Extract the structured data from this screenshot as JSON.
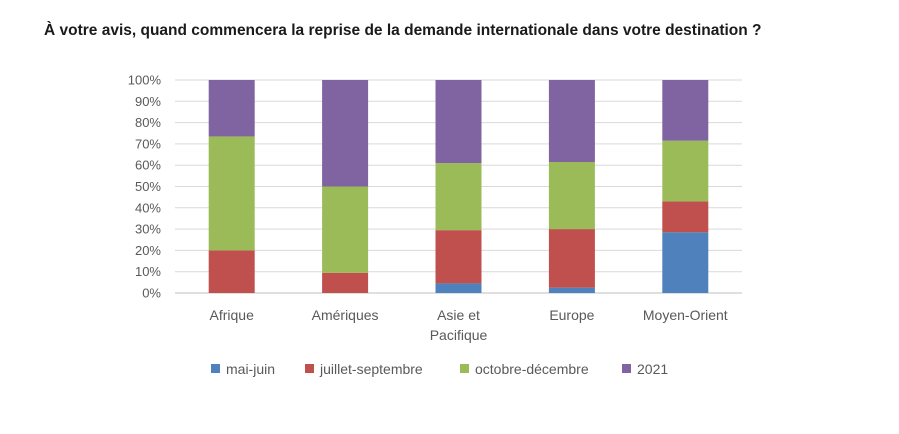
{
  "title": "À votre avis, quand commencera la reprise de la demande internationale dans votre destination ?",
  "colors": {
    "mai-juin": "#4f81bd",
    "juillet-septembre": "#c0504d",
    "octobre-décembre": "#9bbb59",
    "2021": "#8064a2"
  },
  "chart_data": {
    "type": "bar",
    "stacked": true,
    "percent": true,
    "title": "À votre avis, quand commencera la reprise de la demande internationale dans votre destination ?",
    "categories": [
      [
        "Afrique"
      ],
      [
        "Amériques"
      ],
      [
        "Asie et",
        "Pacifique"
      ],
      [
        "Europe"
      ],
      [
        "Moyen-Orient"
      ]
    ],
    "series": [
      {
        "name": "mai-juin",
        "values": [
          0,
          0,
          4.5,
          2.5,
          28.5
        ]
      },
      {
        "name": "juillet-septembre",
        "values": [
          20,
          9.5,
          25,
          27.5,
          14.5
        ]
      },
      {
        "name": "octobre-décembre",
        "values": [
          53.5,
          40.5,
          31.5,
          31.5,
          28.5
        ]
      },
      {
        "name": "2021",
        "values": [
          26.5,
          50,
          39,
          38.5,
          28.5
        ]
      }
    ],
    "ylim": [
      0,
      100
    ],
    "yticks": [
      "0%",
      "10%",
      "20%",
      "30%",
      "40%",
      "50%",
      "60%",
      "70%",
      "80%",
      "90%",
      "100%"
    ],
    "grid": true,
    "legend": "bottom"
  }
}
